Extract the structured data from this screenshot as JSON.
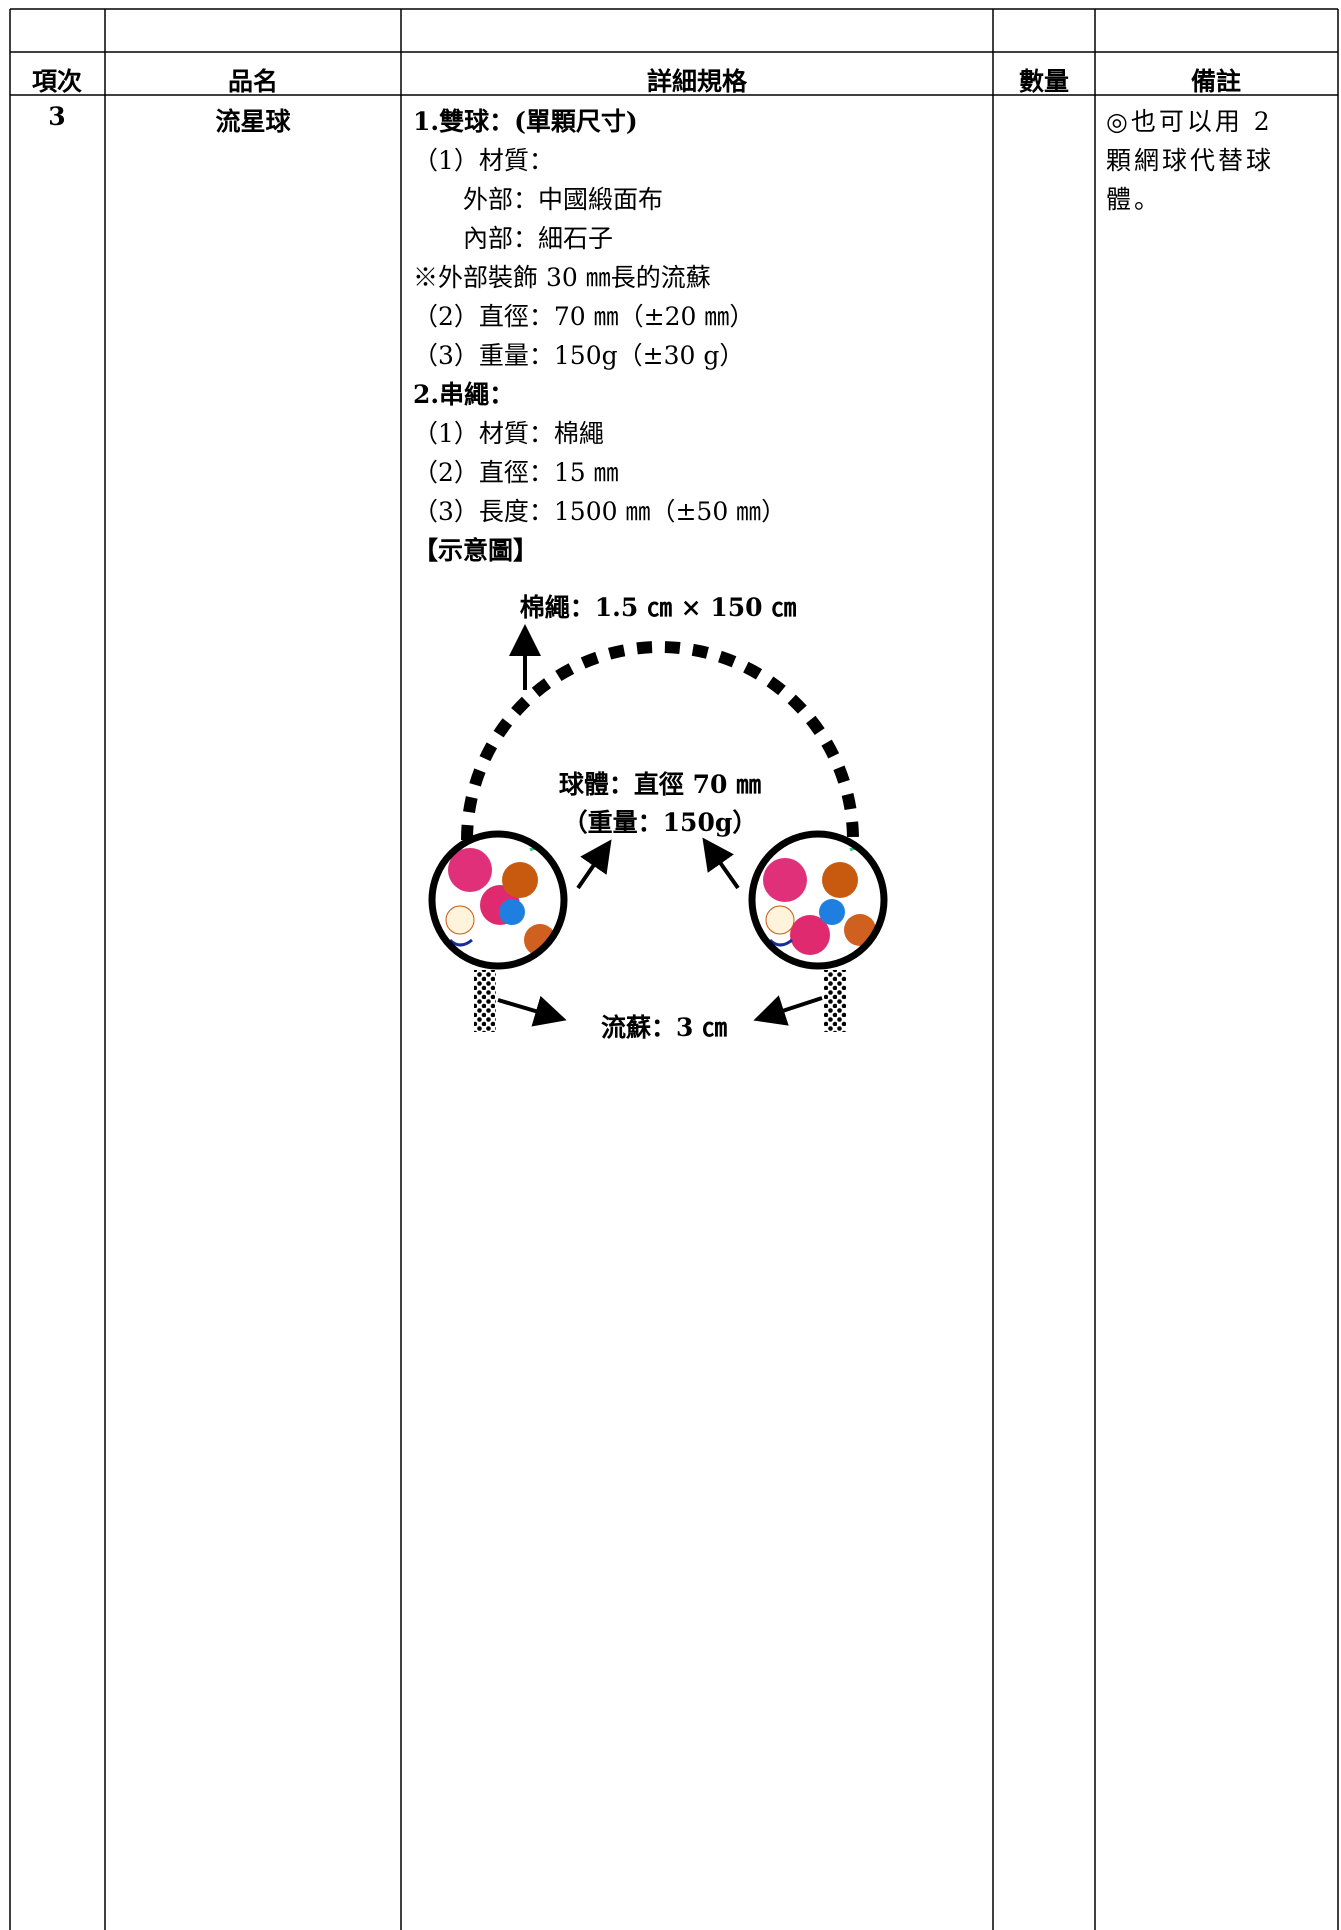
{
  "table": {
    "headers": [
      "項次",
      "品名",
      "詳細規格",
      "數量",
      "備註"
    ],
    "rows": [
      {
        "item": "3",
        "name": "流星球",
        "spec": [
          {
            "text": "1.雙球：(單顆尺寸)",
            "bold": true,
            "indent": 0
          },
          {
            "text": "（1）材質：",
            "bold": false,
            "indent": 0
          },
          {
            "text": "外部：中國緞面布",
            "bold": false,
            "indent": 2
          },
          {
            "text": "內部：細石子",
            "bold": false,
            "indent": 2
          },
          {
            "text": "※外部裝飾 30 ㎜長的流蘇",
            "bold": false,
            "indent": 0
          },
          {
            "text": "（2）直徑：70 ㎜（±20 ㎜）",
            "bold": false,
            "indent": 0
          },
          {
            "text": "（3）重量：150g（±30 g）",
            "bold": false,
            "indent": 0
          },
          {
            "text": "2.串繩：",
            "bold": true,
            "indent": 0
          },
          {
            "text": "（1）材質：棉繩",
            "bold": false,
            "indent": 0
          },
          {
            "text": "（2）直徑：15 ㎜",
            "bold": false,
            "indent": 0
          },
          {
            "text": "（3）長度：1500 ㎜（±50 ㎜）",
            "bold": false,
            "indent": 0
          },
          {
            "text": "【示意圖】",
            "bold": true,
            "indent": 0
          }
        ],
        "remark": [
          "◎也可以用 2",
          "顆網球代替球",
          "體。"
        ]
      }
    ]
  },
  "diagram": {
    "rope_label": "棉繩：1.5 ㎝ × 150 ㎝",
    "ball_label": "球體：直徑 70 ㎜",
    "weight_label": "（重量：150g）",
    "tassel_label": "流蘇：3 ㎝"
  }
}
